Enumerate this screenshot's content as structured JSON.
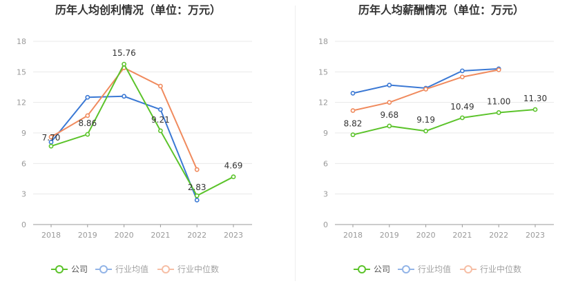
{
  "chart_data": [
    {
      "type": "line",
      "title": "历年人均创利情况（单位：万元）",
      "categories": [
        "2018",
        "2019",
        "2020",
        "2021",
        "2022",
        "2023"
      ],
      "yticks": [
        "0",
        "3",
        "6",
        "9",
        "12",
        "15",
        "18"
      ],
      "ylim": [
        0,
        18
      ],
      "grid": true,
      "legend_position": "bottom",
      "series": [
        {
          "name": "公司",
          "color": "#5bc32a",
          "values": [
            7.7,
            8.86,
            15.76,
            9.21,
            2.83,
            4.69
          ],
          "labels": [
            "7.70",
            "8.86",
            "15.76",
            "9.21",
            "2.83",
            "4.69"
          ]
        },
        {
          "name": "行业均值",
          "color": "#3a78d4",
          "values": [
            8.1,
            12.5,
            12.6,
            11.3,
            2.4,
            null
          ]
        },
        {
          "name": "行业中位数",
          "color": "#f08a5d",
          "values": [
            8.6,
            10.7,
            15.4,
            13.6,
            5.4,
            null
          ]
        }
      ]
    },
    {
      "type": "line",
      "title": "历年人均薪酬情况（单位：万元）",
      "categories": [
        "2018",
        "2019",
        "2020",
        "2021",
        "2022",
        "2023"
      ],
      "yticks": [
        "0",
        "3",
        "6",
        "9",
        "12",
        "15",
        "18"
      ],
      "ylim": [
        0,
        18
      ],
      "grid": true,
      "legend_position": "bottom",
      "series": [
        {
          "name": "公司",
          "color": "#5bc32a",
          "values": [
            8.82,
            9.68,
            9.19,
            10.49,
            11.0,
            11.3
          ],
          "labels": [
            "8.82",
            "9.68",
            "9.19",
            "10.49",
            "11.00",
            "11.30"
          ]
        },
        {
          "name": "行业均值",
          "color": "#3a78d4",
          "values": [
            12.9,
            13.7,
            13.4,
            15.1,
            15.3,
            null
          ]
        },
        {
          "name": "行业中位数",
          "color": "#f08a5d",
          "values": [
            11.2,
            12.0,
            13.3,
            14.5,
            15.2,
            null
          ]
        }
      ]
    }
  ]
}
